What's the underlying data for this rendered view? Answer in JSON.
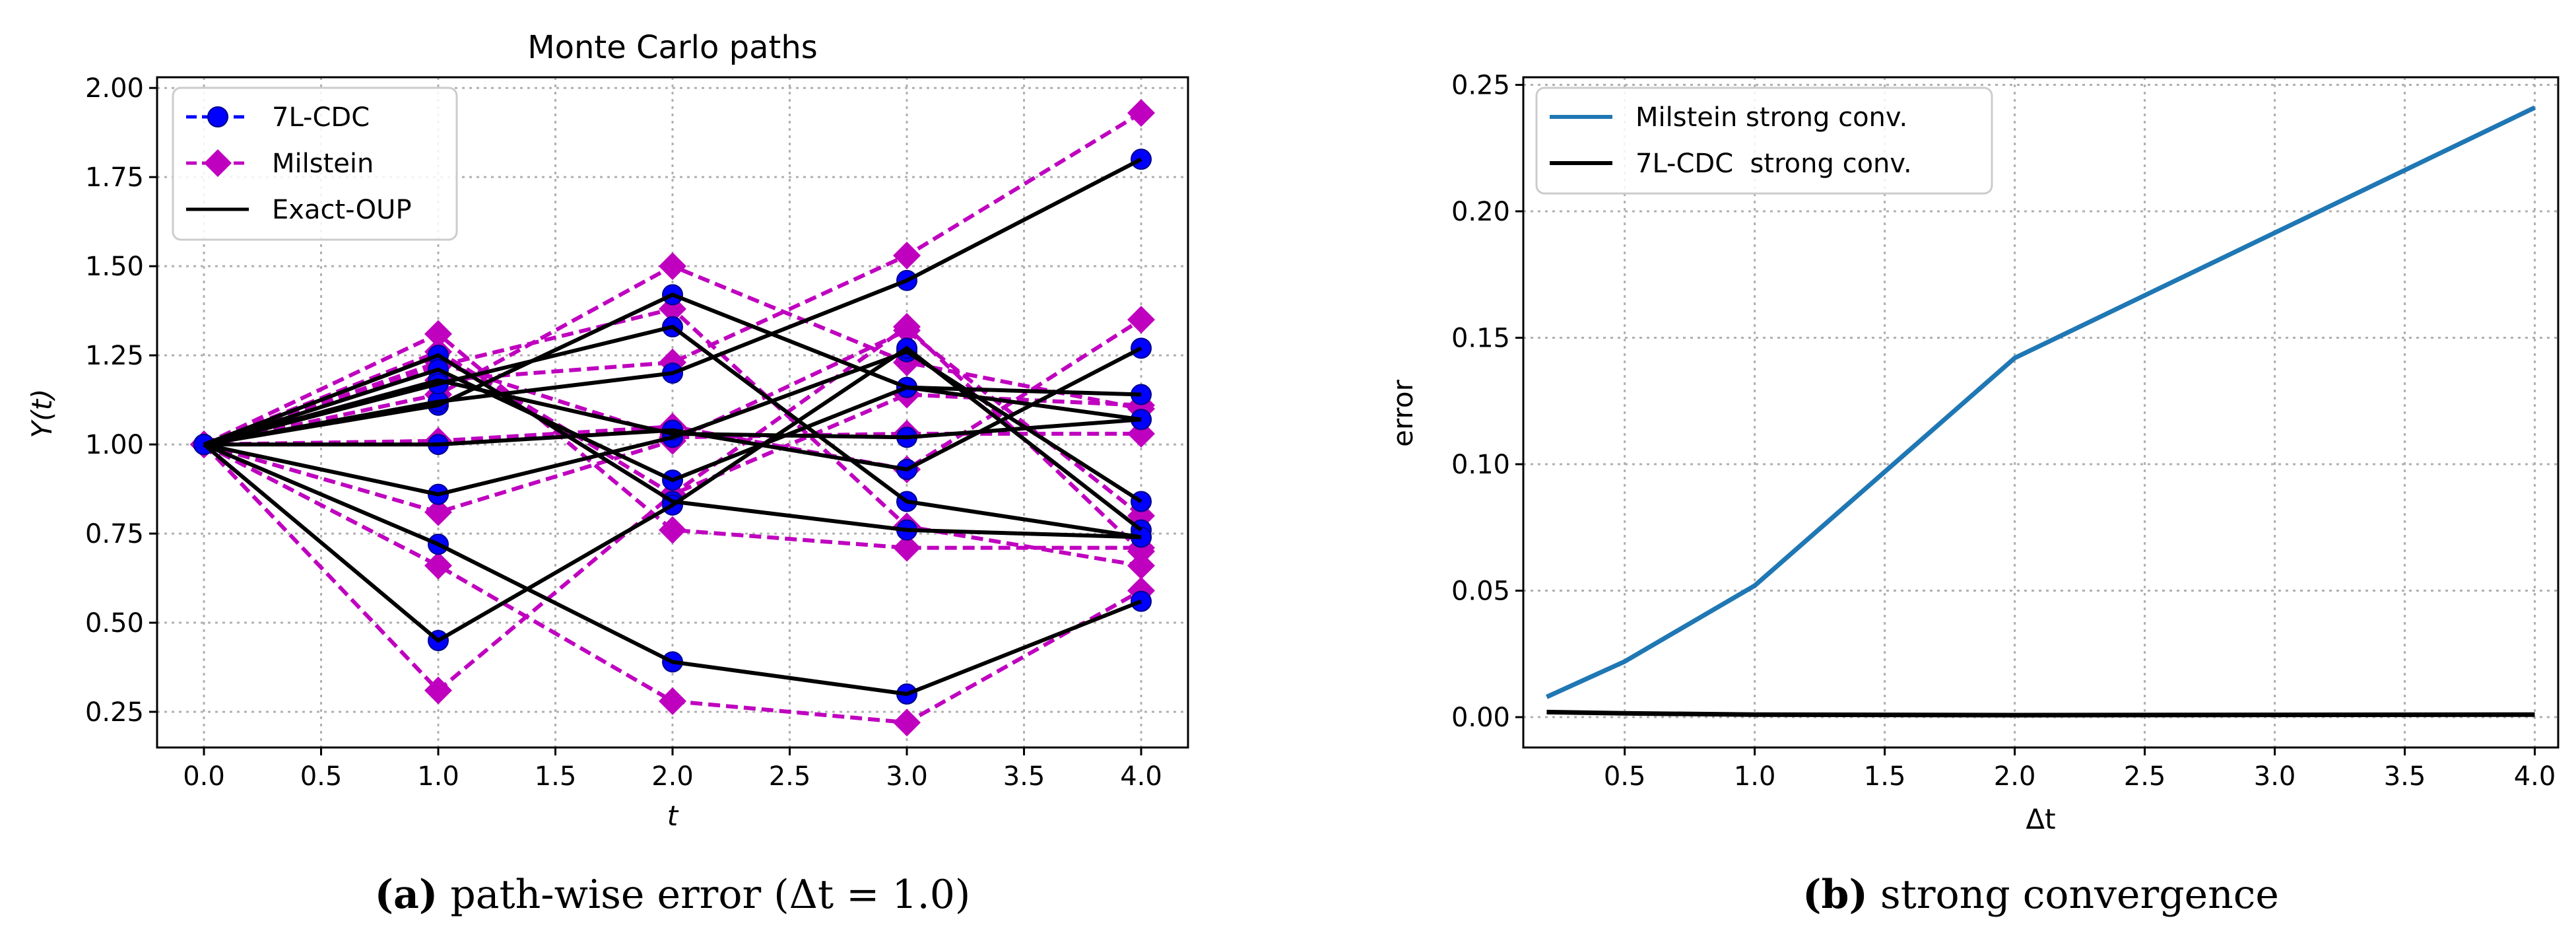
{
  "chart_data": [
    {
      "type": "line",
      "title": "Monte Carlo paths",
      "xlabel": "t",
      "ylabel": "Y(t)",
      "xlim": [
        -0.2,
        4.2
      ],
      "ylim": [
        0.15,
        2.03
      ],
      "xticks": [
        "0.0",
        "0.5",
        "1.0",
        "1.5",
        "2.0",
        "2.5",
        "3.0",
        "3.5",
        "4.0"
      ],
      "yticks": [
        "0.25",
        "0.50",
        "0.75",
        "1.00",
        "1.25",
        "1.50",
        "1.75",
        "2.00"
      ],
      "grid": true,
      "legend_position": "top-left",
      "legend": [
        "7L-CDC",
        "Milstein",
        "Exact-OUP"
      ],
      "colors": {
        "cdc": "#0000ff",
        "milstein": "#bf00bf",
        "exact": "#000000"
      },
      "x": [
        0,
        1,
        2,
        3,
        4
      ],
      "paths": [
        {
          "exact": [
            1.0,
            1.25,
            0.84,
            0.76,
            0.74
          ],
          "milstein": [
            1.0,
            1.31,
            0.76,
            0.71,
            0.71
          ]
        },
        {
          "exact": [
            1.0,
            1.21,
            0.9,
            1.16,
            1.14
          ],
          "milstein": [
            1.0,
            1.26,
            0.86,
            1.14,
            1.11
          ]
        },
        {
          "exact": [
            1.0,
            1.18,
            1.03,
            1.02,
            1.07
          ],
          "milstein": [
            1.0,
            1.23,
            1.02,
            1.03,
            1.03
          ]
        },
        {
          "exact": [
            1.0,
            1.11,
            1.42,
            1.16,
            1.07
          ],
          "milstein": [
            1.0,
            1.14,
            1.5,
            1.23,
            1.1
          ]
        },
        {
          "exact": [
            1.0,
            0.86,
            1.02,
            1.26,
            0.84
          ],
          "milstein": [
            1.0,
            0.81,
            1.01,
            1.32,
            0.8
          ]
        },
        {
          "exact": [
            1.0,
            0.45,
            0.83,
            1.27,
            0.76
          ],
          "milstein": [
            1.0,
            0.31,
            0.86,
            1.33,
            0.7
          ]
        },
        {
          "exact": [
            1.0,
            1.12,
            1.2,
            1.46,
            1.8
          ],
          "milstein": [
            1.0,
            1.18,
            1.23,
            1.53,
            1.93
          ]
        },
        {
          "exact": [
            1.0,
            1.17,
            1.33,
            0.84,
            0.74
          ],
          "milstein": [
            1.0,
            1.22,
            1.38,
            0.77,
            0.66
          ]
        },
        {
          "exact": [
            1.0,
            0.72,
            0.39,
            0.3,
            0.56
          ],
          "milstein": [
            1.0,
            0.66,
            0.28,
            0.22,
            0.59
          ]
        },
        {
          "exact": [
            1.0,
            1.0,
            1.04,
            0.93,
            1.27
          ],
          "milstein": [
            1.0,
            1.01,
            1.05,
            0.93,
            1.35
          ]
        }
      ]
    },
    {
      "type": "line",
      "xlabel": "Δt",
      "ylabel": "error",
      "xlim": [
        0.11,
        4.09
      ],
      "ylim": [
        -0.012,
        0.253
      ],
      "xticks": [
        "0.5",
        "1.0",
        "1.5",
        "2.0",
        "2.5",
        "3.0",
        "3.5",
        "4.0"
      ],
      "yticks": [
        "0.00",
        "0.05",
        "0.10",
        "0.15",
        "0.20",
        "0.25"
      ],
      "grid": true,
      "legend_position": "top-left",
      "series": [
        {
          "name": "Milstein strong conv.",
          "color": "#1f77b4",
          "x": [
            0.2,
            0.5,
            1.0,
            2.0,
            4.0
          ],
          "y": [
            0.008,
            0.022,
            0.052,
            0.142,
            0.241
          ]
        },
        {
          "name": "7L-CDC  strong conv.",
          "color": "#000000",
          "x": [
            0.2,
            0.5,
            1.0,
            2.0,
            4.0
          ],
          "y": [
            0.002,
            0.0015,
            0.001,
            0.0008,
            0.001
          ]
        }
      ]
    }
  ],
  "captions": {
    "a": {
      "label": "(a)",
      "text": " path-wise error (Δt = 1.0)"
    },
    "b": {
      "label": "(b)",
      "text": " strong convergence"
    }
  }
}
